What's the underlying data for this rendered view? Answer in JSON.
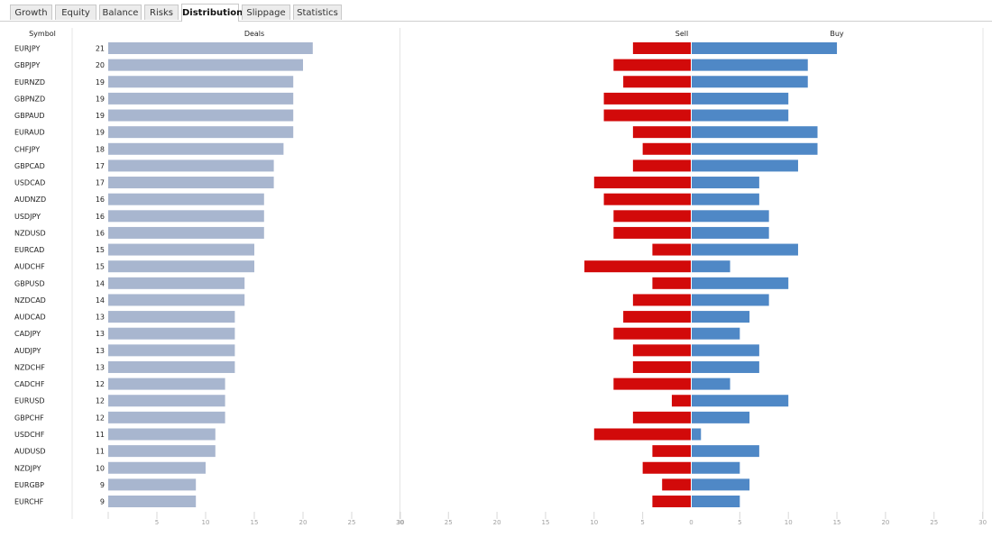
{
  "tabs": [
    "Growth",
    "Equity",
    "Balance",
    "Risks",
    "Distribution",
    "Slippage",
    "Statistics"
  ],
  "active_tab": "Distribution",
  "chart_data": {
    "type": "bar",
    "columns": {
      "symbol": "Symbol",
      "deals": "Deals",
      "sell": "Sell",
      "buy": "Buy"
    },
    "categories": [
      "EURJPY",
      "GBPJPY",
      "EURNZD",
      "GBPNZD",
      "GBPAUD",
      "EURAUD",
      "CHFJPY",
      "GBPCAD",
      "USDCAD",
      "AUDNZD",
      "USDJPY",
      "NZDUSD",
      "EURCAD",
      "AUDCHF",
      "GBPUSD",
      "NZDCAD",
      "AUDCAD",
      "CADJPY",
      "AUDJPY",
      "NZDCHF",
      "CADCHF",
      "EURUSD",
      "GBPCHF",
      "USDCHF",
      "AUDUSD",
      "NZDJPY",
      "EURGBP",
      "EURCHF"
    ],
    "deals": [
      21,
      20,
      19,
      19,
      19,
      19,
      18,
      17,
      17,
      16,
      16,
      16,
      15,
      15,
      14,
      14,
      13,
      13,
      13,
      13,
      12,
      12,
      12,
      11,
      11,
      10,
      9,
      9
    ],
    "sell": [
      6,
      8,
      7,
      9,
      9,
      6,
      5,
      6,
      10,
      9,
      8,
      8,
      4,
      11,
      4,
      6,
      7,
      8,
      6,
      6,
      8,
      2,
      6,
      10,
      4,
      5,
      3,
      4
    ],
    "buy": [
      15,
      12,
      12,
      10,
      10,
      13,
      13,
      11,
      7,
      7,
      8,
      8,
      11,
      4,
      10,
      8,
      6,
      5,
      7,
      7,
      4,
      10,
      6,
      1,
      7,
      5,
      6,
      5
    ],
    "deals_axis": {
      "range": [
        0,
        30
      ],
      "ticks": [
        5,
        10,
        15,
        20,
        25,
        30
      ]
    },
    "sell_axis": {
      "range": [
        30,
        0
      ],
      "ticks": [
        30,
        25,
        20,
        15,
        10,
        5,
        0
      ]
    },
    "buy_axis": {
      "range": [
        0,
        30
      ],
      "ticks": [
        5,
        10,
        15,
        20,
        25,
        30
      ]
    },
    "colors": {
      "deals": "#a8b6cf",
      "sell": "#d20a0a",
      "buy": "#4f88c6",
      "grid": "#e4e4e4",
      "tick_label": "#a0a0a0"
    },
    "grid": true
  }
}
